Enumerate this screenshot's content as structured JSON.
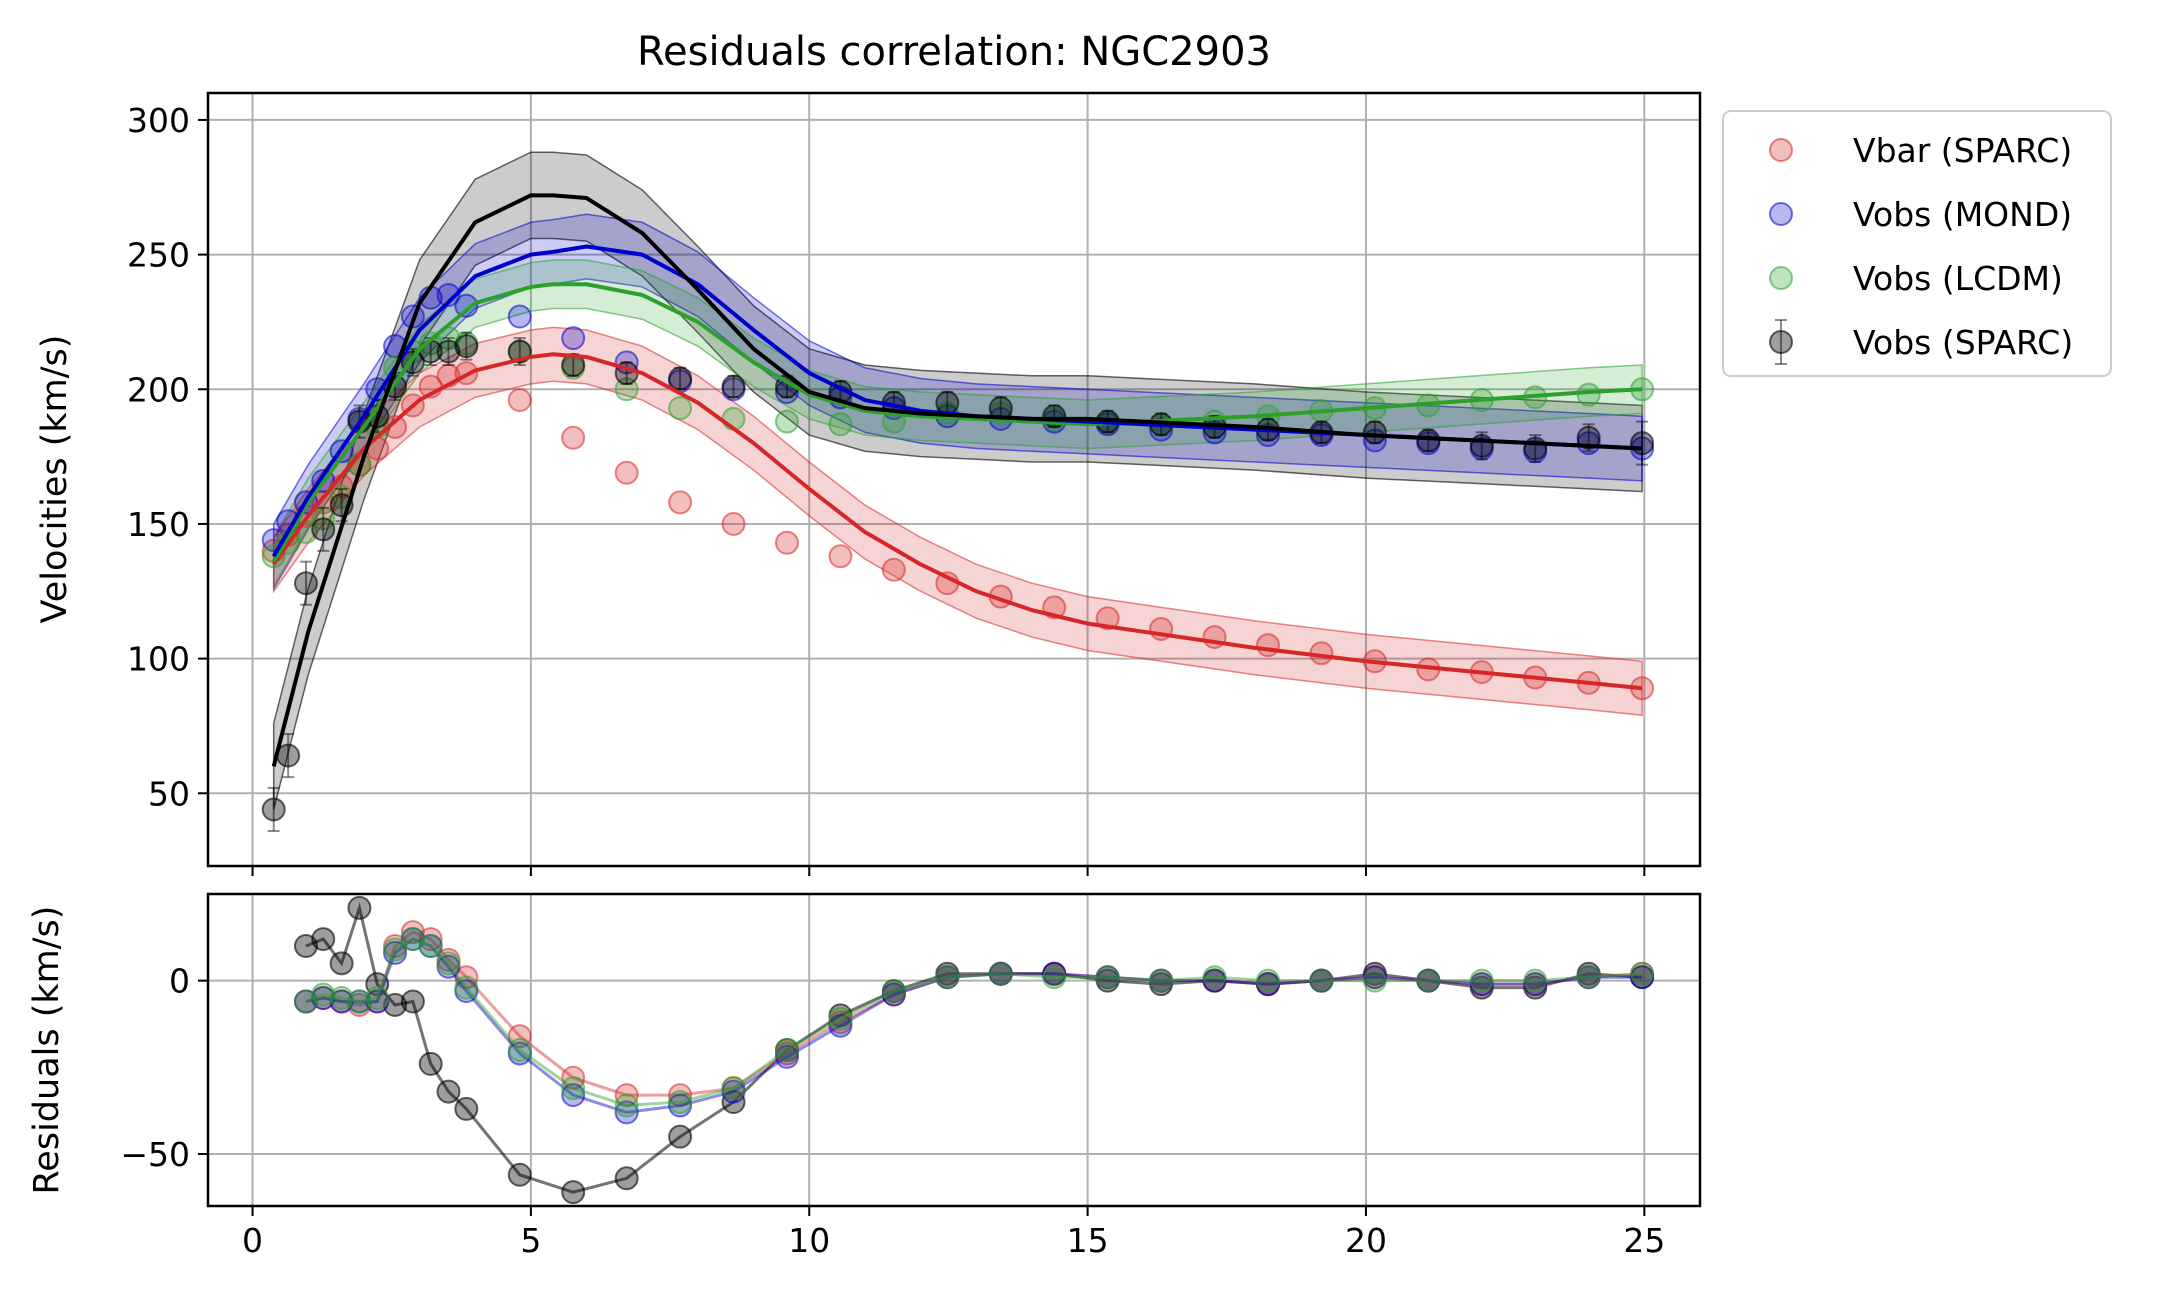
{
  "chart_data": {
    "type": "scatter",
    "title": "Residuals correlation: NGC2903",
    "xlim": [
      -0.8,
      26.0
    ],
    "xticks": [
      0,
      5,
      10,
      15,
      20,
      25
    ],
    "grid": true,
    "legend_placement": "outside upper right",
    "colors": {
      "vbar": "#d62728",
      "mond": "#0000cc",
      "lcdm": "#2ca02c",
      "sparc": "#000000",
      "grid": "#b0b0b0"
    },
    "legend": [
      {
        "key": "vbar",
        "label": "Vbar (SPARC)",
        "color": "#f08080",
        "edge": "#d62728",
        "marker": "circle"
      },
      {
        "key": "mond",
        "label": "Vobs (MOND)",
        "color": "#8080f0",
        "edge": "#0000cc",
        "marker": "circle"
      },
      {
        "key": "lcdm",
        "label": "Vobs (LCDM)",
        "color": "#90d890",
        "edge": "#2ca02c",
        "marker": "circle"
      },
      {
        "key": "sparc",
        "label": "Vobs (SPARC)",
        "color": "#707070",
        "edge": "#000000",
        "marker": "errorbar"
      }
    ],
    "x": [
      0.38,
      0.64,
      0.96,
      1.27,
      1.6,
      1.92,
      2.24,
      2.56,
      2.88,
      3.2,
      3.52,
      3.84,
      4.8,
      5.76,
      6.72,
      7.68,
      8.64,
      9.6,
      10.56,
      11.52,
      12.48,
      13.44,
      14.4,
      15.36,
      16.32,
      17.28,
      18.24,
      19.2,
      20.16,
      21.12,
      22.08,
      23.04,
      24.0,
      24.96
    ],
    "main": {
      "ylabel": "Velocities (km/s)",
      "ylim": [
        23,
        310
      ],
      "yticks": [
        50,
        100,
        150,
        200,
        250,
        300
      ],
      "points": {
        "vbar": [
          140,
          146,
          153,
          158,
          164,
          172,
          178,
          186,
          194,
          201,
          205,
          206,
          196,
          182,
          169,
          158,
          150,
          143,
          138,
          133,
          128,
          123,
          119,
          115,
          111,
          108,
          105,
          102,
          99,
          96,
          95,
          93,
          91,
          89
        ],
        "mond": [
          144,
          151,
          158,
          166,
          177,
          189,
          200,
          216,
          227,
          234,
          235,
          231,
          227,
          219,
          210,
          203,
          200,
          199,
          197,
          193,
          190,
          189,
          188,
          187,
          185,
          184,
          183,
          183,
          181,
          180,
          178,
          177,
          180,
          178
        ],
        "lcdm": [
          138,
          143,
          147,
          152,
          160,
          172,
          186,
          208,
          214,
          217,
          219,
          217,
          214,
          208,
          200,
          193,
          189,
          188,
          187,
          188,
          191,
          191,
          189,
          188,
          187,
          188,
          190,
          192,
          193,
          194,
          196,
          197,
          198,
          200
        ],
        "sparc": [
          44,
          64,
          128,
          148,
          157,
          188,
          190,
          201,
          210,
          214,
          214,
          216,
          214,
          209,
          206,
          204,
          201,
          201,
          199,
          195,
          195,
          193,
          190,
          188,
          187,
          186,
          185,
          184,
          184,
          181,
          179,
          178,
          182,
          180
        ],
        "sparc_err": [
          8,
          8,
          8,
          8,
          6,
          6,
          6,
          5,
          5,
          5,
          5,
          5,
          5,
          4,
          4,
          4,
          4,
          4,
          4,
          4,
          4,
          4,
          4,
          4,
          4,
          4,
          4,
          4,
          4,
          4,
          5,
          5,
          5,
          8
        ]
      },
      "curves": {
        "x": [
          0.38,
          1.0,
          2.0,
          3.0,
          4.0,
          5.0,
          5.4,
          6.0,
          7.0,
          8.0,
          9.0,
          10.0,
          11.0,
          12.0,
          13.0,
          14.0,
          15.0,
          16.0,
          18.0,
          20.0,
          22.0,
          24.0,
          24.96
        ],
        "vbar": [
          135,
          153,
          178,
          196,
          207,
          212,
          213,
          212,
          206,
          195,
          180,
          163,
          147,
          135,
          125,
          118,
          113,
          110,
          104,
          99,
          95,
          91,
          89
        ],
        "mond": [
          138,
          160,
          190,
          222,
          242,
          250,
          251,
          253,
          250,
          239,
          222,
          206,
          196,
          192,
          190,
          189,
          188,
          187,
          185,
          183,
          181,
          179,
          178
        ],
        "lcdm": [
          136,
          158,
          186,
          215,
          232,
          238,
          239,
          239,
          235,
          225,
          210,
          198,
          192,
          190,
          189,
          188,
          187,
          188,
          190,
          193,
          196,
          199,
          200
        ],
        "sparc": [
          60,
          110,
          175,
          232,
          262,
          272,
          272,
          271,
          258,
          237,
          215,
          199,
          193,
          191,
          190,
          189,
          189,
          188,
          186,
          183,
          181,
          179,
          178
        ],
        "band_half": {
          "vbar": 10,
          "mond": 12,
          "lcdm": 9,
          "sparc": 16
        }
      }
    },
    "residuals": {
      "ylabel": "Residuals (km/s)",
      "ylim": [
        -65,
        25
      ],
      "yticks": [
        -50,
        0
      ],
      "x": [
        0.96,
        1.27,
        1.6,
        1.92,
        2.24,
        2.56,
        2.88,
        3.2,
        3.52,
        3.84,
        4.8,
        5.76,
        6.72,
        7.68,
        8.64,
        9.6,
        10.56,
        11.52,
        12.48,
        13.44,
        14.4,
        15.36,
        16.32,
        17.28,
        18.24,
        19.2,
        20.16,
        21.12,
        22.08,
        23.04,
        24.0,
        24.96
      ],
      "vbar": [
        -6,
        -5,
        -6,
        -7,
        -6,
        10,
        14,
        12,
        6,
        1,
        -16,
        -28,
        -33,
        -33,
        -31,
        -21,
        -12,
        -4,
        1,
        2,
        2,
        1,
        0,
        0,
        -1,
        0,
        1,
        0,
        -1,
        -1,
        1,
        2
      ],
      "mond": [
        -6,
        -5,
        -6,
        -6,
        -6,
        8,
        12,
        10,
        4,
        -3,
        -21,
        -33,
        -38,
        -36,
        -32,
        -22,
        -13,
        -4,
        1,
        2,
        2,
        1,
        0,
        0,
        -1,
        0,
        1,
        0,
        -1,
        -1,
        1,
        1
      ],
      "lcdm": [
        -6,
        -4,
        -5,
        -6,
        -5,
        9,
        12,
        10,
        5,
        -2,
        -20,
        -31,
        -36,
        -35,
        -31,
        -20,
        -11,
        -3,
        1,
        2,
        1,
        1,
        0,
        1,
        0,
        0,
        0,
        0,
        0,
        0,
        1,
        2
      ],
      "sparc": [
        10,
        12,
        5,
        21,
        -1,
        -7,
        -6,
        -24,
        -32,
        -37,
        -56,
        -61,
        -57,
        -45,
        -35,
        -20,
        -10,
        -3,
        2,
        2,
        2,
        0,
        -1,
        0,
        -1,
        0,
        2,
        0,
        -2,
        -2,
        2,
        1
      ]
    }
  }
}
